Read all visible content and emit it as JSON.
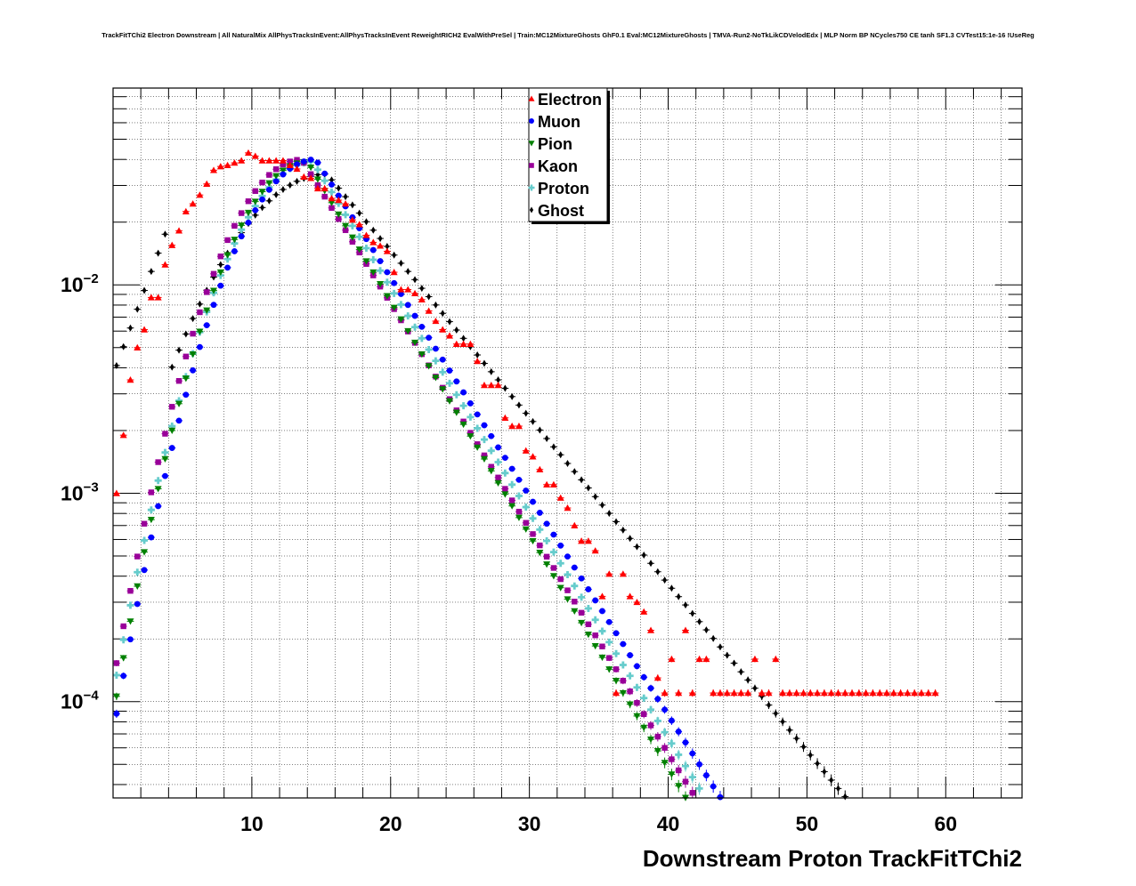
{
  "chart_data": {
    "type": "scatter",
    "title": "TrackFitTChi2 Electron Downstream | All NaturalMix AllPhysTracksInEvent:AllPhysTracksInEvent ReweightRICH2 EvalWithPreSel | Train:MC12MixtureGhosts GhF0.1 Eval:MC12MixtureGhosts | TMVA-Run2-NoTkLikCDVelodEdx | MLP Norm BP NCycles750 CE tanh SF1.3 CVTest15:1e-16 !UseReg",
    "xlabel": "Downstream Proton TrackFitTChi2",
    "ylabel": "",
    "xlim": [
      0,
      65.5
    ],
    "ylim": [
      3.45e-05,
      0.088
    ],
    "y_scale": "log",
    "grid": true,
    "legend_position": "top-center",
    "x_ticks": [
      "10",
      "20",
      "30",
      "40",
      "50",
      "60"
    ],
    "x_tick_values": [
      10,
      20,
      30,
      40,
      50,
      60
    ],
    "y_ticks": [
      {
        "base": "10",
        "exp": "−2",
        "value": 0.01
      },
      {
        "base": "10",
        "exp": "−3",
        "value": 0.001
      },
      {
        "base": "10",
        "exp": "−4",
        "value": 0.0001
      }
    ],
    "series": [
      {
        "name": "Electron",
        "color": "#ff0000",
        "marker": "triangle-up",
        "x": [
          0.25,
          0.75,
          1.25,
          1.75,
          2.25,
          2.75,
          3.25,
          3.75,
          4.25,
          4.75,
          5.25,
          5.75,
          6.25,
          6.75,
          7.25,
          7.75,
          8.25,
          8.75,
          9.25,
          9.75,
          10.25,
          10.75,
          11.25,
          11.75,
          12.25,
          12.75,
          13.25,
          13.75,
          14.25,
          14.75,
          15.25,
          15.75,
          16.25,
          16.75,
          17.25,
          17.75,
          18.25,
          18.75,
          19.25,
          19.75,
          20.25,
          20.75,
          21.25,
          21.75,
          22.25,
          22.75,
          23.25,
          23.75,
          24.25,
          24.75,
          25.25,
          25.75,
          26.25,
          26.75,
          27.25,
          27.75,
          28.25,
          28.75,
          29.25,
          29.75,
          30.25,
          30.75,
          31.25,
          31.75,
          32.25,
          32.75,
          33.25,
          33.75,
          34.25,
          34.75,
          35.25,
          35.75,
          36.25,
          36.75,
          37.25,
          37.75,
          38.25,
          38.75,
          39.25,
          39.75,
          40.25,
          40.75,
          41.25,
          41.75,
          42.25,
          42.75,
          43.25,
          43.75,
          44.25,
          44.75,
          45.25,
          45.75,
          46.25,
          46.75,
          47.25,
          47.75,
          48.25,
          48.75,
          49.25,
          49.75,
          50.25,
          50.75,
          51.25,
          51.75,
          52.25,
          52.75,
          53.25,
          53.75,
          54.25,
          54.75,
          55.25,
          55.75,
          56.25,
          56.75,
          57.25,
          57.75,
          58.25,
          58.75,
          59.25
        ],
        "y": [
          0.001,
          0.0019,
          0.0035,
          0.005,
          0.0061,
          0.0087,
          0.0087,
          0.0125,
          0.0155,
          0.0182,
          0.0225,
          0.0245,
          0.027,
          0.0305,
          0.0355,
          0.037,
          0.0375,
          0.0385,
          0.0395,
          0.043,
          0.0415,
          0.0395,
          0.0395,
          0.0395,
          0.0395,
          0.0375,
          0.036,
          0.033,
          0.0325,
          0.029,
          0.029,
          0.026,
          0.0255,
          0.0245,
          0.0205,
          0.0195,
          0.0173,
          0.016,
          0.0154,
          0.0145,
          0.0115,
          0.0095,
          0.0095,
          0.0091,
          0.0085,
          0.0075,
          0.0067,
          0.0061,
          0.0057,
          0.0052,
          0.0052,
          0.0052,
          0.0043,
          0.0033,
          0.0033,
          0.0033,
          0.0023,
          0.0021,
          0.0021,
          0.0016,
          0.0015,
          0.0013,
          0.0011,
          0.0011,
          0.00095,
          0.00085,
          0.0007,
          0.00059,
          0.00059,
          0.00053,
          0.00032,
          0.00041,
          0.00011,
          0.00041,
          0.00032,
          0.0003,
          0.00027,
          0.00022,
          0.00013,
          0.00011,
          0.00016,
          0.00011,
          0.00022,
          0.00011,
          0.00016,
          0.00016,
          0.00011,
          0.00011,
          0.00011,
          0.00011,
          0.00011,
          0.00011,
          0.00016,
          0.00011,
          0.00011,
          0.00016,
          0.00011,
          0.00011,
          0.00011,
          0.00011,
          0.00011,
          0.00011,
          0.00011,
          0.00011,
          0.00011,
          0.00011,
          0.00011,
          0.00011,
          0.00011,
          0.00011,
          0.00011,
          0.00011,
          0.00011,
          0.00011,
          0.00011,
          0.00011,
          0.00011,
          0.00011,
          0.00011
        ],
        "note_points": "sparse at high x"
      },
      {
        "name": "Muon",
        "color": "#0000ff",
        "marker": "circle",
        "x": [],
        "y": []
      },
      {
        "name": "Pion",
        "color": "#008000",
        "marker": "triangle-down",
        "x": [],
        "y": []
      },
      {
        "name": "Kaon",
        "color": "#990099",
        "marker": "square",
        "x": [],
        "y": []
      },
      {
        "name": "Proton",
        "color": "#66cccc",
        "marker": "cross",
        "x": [],
        "y": []
      },
      {
        "name": "Ghost",
        "color": "#000000",
        "marker": "diamond",
        "x": [],
        "y": []
      }
    ]
  }
}
